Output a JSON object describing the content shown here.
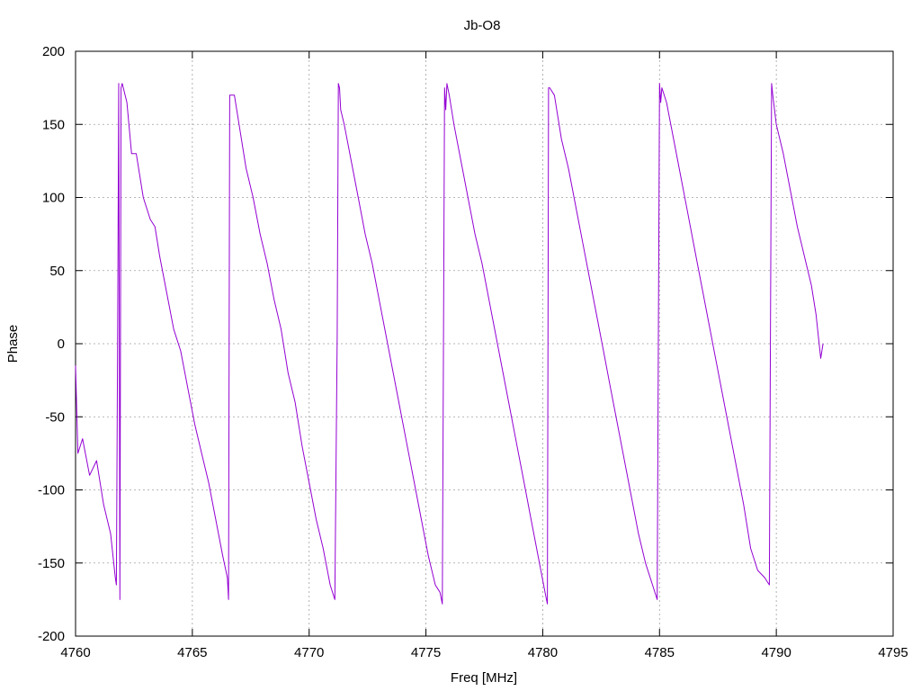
{
  "chart_data": {
    "type": "line",
    "title": "Jb-O8",
    "xlabel": "Freq [MHz]",
    "ylabel": "Phase",
    "xlim": [
      4760,
      4795
    ],
    "ylim": [
      -200,
      200
    ],
    "x_ticks": [
      4760,
      4765,
      4770,
      4775,
      4780,
      4785,
      4790,
      4795
    ],
    "y_ticks": [
      -200,
      -150,
      -100,
      -50,
      0,
      50,
      100,
      150,
      200
    ],
    "x_tick_labels": [
      "4760",
      "4765",
      "4770",
      "4775",
      "4780",
      "4785",
      "4790",
      "4795"
    ],
    "y_tick_labels": [
      "-200",
      "-150",
      "-100",
      "-50",
      "0",
      "50",
      "100",
      "150",
      "200"
    ],
    "grid": true,
    "legend": "none",
    "series_color": "#9400d3",
    "series": [
      {
        "x": [
          4760.0,
          4760.1,
          4760.3,
          4760.6,
          4760.9,
          4761.2,
          4761.5,
          4761.7,
          4761.75,
          4761.8,
          4761.85,
          4761.9,
          4761.95,
          4762.0,
          4762.2,
          4762.4,
          4762.6,
          4762.9,
          4763.2,
          4763.4,
          4763.6,
          4763.9,
          4764.2,
          4764.5,
          4764.8,
          4765.1,
          4765.4,
          4765.7,
          4766.0,
          4766.3,
          4766.5,
          4766.55,
          4766.6,
          4766.8,
          4767.0,
          4767.3,
          4767.6,
          4767.9,
          4768.2,
          4768.5,
          4768.8,
          4769.1,
          4769.4,
          4769.7,
          4770.0,
          4770.3,
          4770.6,
          4770.9,
          4771.1,
          4771.2,
          4771.25,
          4771.3,
          4771.35,
          4771.5,
          4771.8,
          4772.1,
          4772.4,
          4772.7,
          4773.0,
          4773.3,
          4773.6,
          4773.9,
          4774.2,
          4774.5,
          4774.8,
          4775.1,
          4775.4,
          4775.6,
          4775.7,
          4775.75,
          4775.8,
          4775.85,
          4775.9,
          4776.0,
          4776.2,
          4776.5,
          4776.8,
          4777.1,
          4777.4,
          4777.7,
          4778.0,
          4778.3,
          4778.6,
          4778.9,
          4779.2,
          4779.5,
          4779.8,
          4780.1,
          4780.2,
          4780.25,
          4780.3,
          4780.5,
          4780.8,
          4781.1,
          4781.4,
          4781.7,
          4782.0,
          4782.3,
          4782.6,
          4782.9,
          4783.2,
          4783.5,
          4783.8,
          4784.1,
          4784.4,
          4784.7,
          4784.9,
          4784.95,
          4785.0,
          4785.05,
          4785.1,
          4785.3,
          4785.6,
          4785.9,
          4786.2,
          4786.5,
          4786.8,
          4787.1,
          4787.4,
          4787.7,
          4788.0,
          4788.3,
          4788.6,
          4788.9,
          4789.2,
          4789.5,
          4789.7,
          4789.75,
          4789.8,
          4789.85,
          4790.0,
          4790.3,
          4790.6,
          4790.9,
          4791.2,
          4791.5,
          4791.7,
          4791.8,
          4791.9,
          4792.0
        ],
        "y": [
          -15,
          -75,
          -65,
          -90,
          -80,
          -110,
          -130,
          -160,
          -165,
          -5,
          178,
          -175,
          175,
          178,
          165,
          130,
          130,
          100,
          85,
          80,
          60,
          35,
          10,
          -5,
          -30,
          -55,
          -75,
          -95,
          -120,
          -145,
          -160,
          -175,
          170,
          170,
          150,
          120,
          100,
          75,
          55,
          30,
          10,
          -20,
          -40,
          -70,
          -95,
          -120,
          -140,
          -165,
          -175,
          5,
          178,
          175,
          160,
          150,
          125,
          100,
          75,
          55,
          30,
          5,
          -20,
          -45,
          -70,
          -95,
          -120,
          -145,
          -165,
          -170,
          -178,
          5,
          175,
          160,
          178,
          170,
          150,
          125,
          100,
          75,
          55,
          30,
          5,
          -20,
          -45,
          -70,
          -95,
          -120,
          -145,
          -170,
          -178,
          175,
          175,
          170,
          140,
          120,
          95,
          70,
          45,
          20,
          -5,
          -30,
          -55,
          -80,
          -105,
          -130,
          -150,
          -165,
          -175,
          5,
          178,
          165,
          175,
          165,
          140,
          115,
          90,
          65,
          40,
          15,
          -10,
          -35,
          -60,
          -85,
          -110,
          -140,
          -155,
          -160,
          -165,
          5,
          178,
          170,
          150,
          130,
          105,
          80,
          60,
          40,
          20,
          5,
          -10,
          0
        ]
      }
    ]
  }
}
